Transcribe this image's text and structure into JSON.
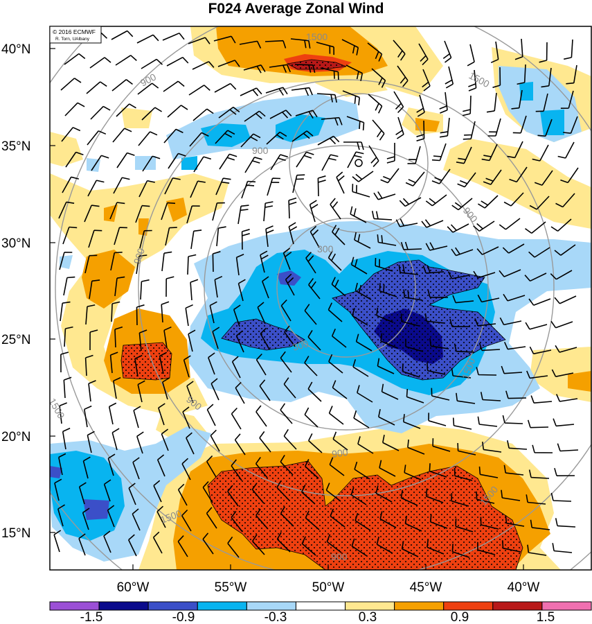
{
  "title": "F024 Average Zonal Wind",
  "credit": {
    "line1": "© 2016 ECMWF",
    "line2": "R. Torn, UAlbany"
  },
  "lat_labels": [
    "40°N",
    "35°N",
    "30°N",
    "25°N",
    "20°N",
    "15°N"
  ],
  "lon_labels": [
    "60°W",
    "55°W",
    "50°W",
    "45°W",
    "40°W"
  ],
  "contour_labels": [
    "1500",
    "1500",
    "900",
    "900",
    "900",
    "900",
    "300",
    "300",
    "1500",
    "900",
    "1500",
    "1500",
    "900",
    "1500",
    "900"
  ],
  "colorbar": {
    "colors": [
      "#9b4fd6",
      "#0a0a8c",
      "#3b4fc8",
      "#08b4f0",
      "#a8d8f8",
      "#ffffff",
      "#ffe890",
      "#f5a000",
      "#ee4010",
      "#b81818",
      "#f070b0"
    ],
    "labels": [
      "-1.5",
      "-0.9",
      "-0.3",
      "0.3",
      "0.9",
      "1.5"
    ]
  },
  "fill_colors": {
    "pos1": "#ffe890",
    "pos2": "#f5a000",
    "pos3": "#ee4010",
    "pos4": "#b81818",
    "neg1": "#a8d8f8",
    "neg2": "#08b4f0",
    "neg3": "#3b4fc8",
    "neg4": "#0a0a8c"
  }
}
